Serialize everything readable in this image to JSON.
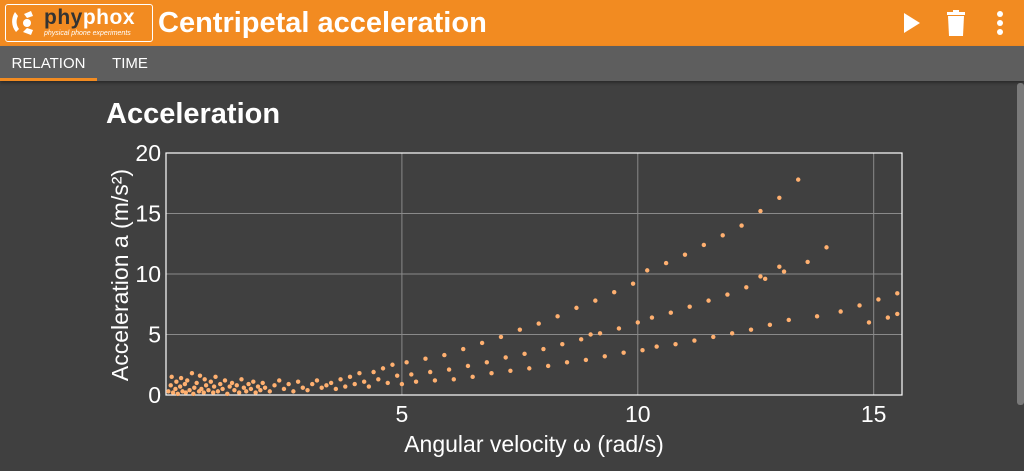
{
  "app": {
    "logo_word_a": "phy",
    "logo_word_b": "phox",
    "logo_subtitle": "physical phone experiments",
    "title": "Centripetal acceleration"
  },
  "toolbar": {
    "play_icon": "play-icon",
    "delete_icon": "trash-icon",
    "menu_icon": "more-vertical-icon"
  },
  "tabs": [
    {
      "label": "RELATION",
      "active": true
    },
    {
      "label": "TIME",
      "active": false
    }
  ],
  "graph": {
    "title": "Acceleration"
  },
  "colors": {
    "accent": "#f28b21",
    "background": "#404040",
    "tabbar": "#5e5e5e",
    "marker": "#ffb070"
  },
  "chart_data": {
    "type": "scatter",
    "title": "Acceleration",
    "xlabel": "Angular velocity ω (rad/s)",
    "ylabel": "Acceleration a (m/s²)",
    "xlim": [
      0,
      15.6
    ],
    "ylim": [
      0,
      20
    ],
    "xticks": [
      5,
      10,
      15
    ],
    "yticks": [
      0,
      5,
      10,
      15,
      20
    ],
    "grid": true,
    "series": [
      {
        "values": [
          [
            0.05,
            0.3
          ],
          [
            0.1,
            0.8
          ],
          [
            0.12,
            1.5
          ],
          [
            0.15,
            0.2
          ],
          [
            0.2,
            0.5
          ],
          [
            0.22,
            1.1
          ],
          [
            0.25,
            0.1
          ],
          [
            0.3,
            0.7
          ],
          [
            0.32,
            1.4
          ],
          [
            0.35,
            0.3
          ],
          [
            0.4,
            0.9
          ],
          [
            0.42,
            0.2
          ],
          [
            0.45,
            1.2
          ],
          [
            0.5,
            0.4
          ],
          [
            0.55,
            1.8
          ],
          [
            0.58,
            0.1
          ],
          [
            0.6,
            0.6
          ],
          [
            0.65,
            1.0
          ],
          [
            0.7,
            0.3
          ],
          [
            0.72,
            1.6
          ],
          [
            0.75,
            0.5
          ],
          [
            0.8,
            0.2
          ],
          [
            0.82,
            1.3
          ],
          [
            0.85,
            0.8
          ],
          [
            0.9,
            0.4
          ],
          [
            0.95,
            1.1
          ],
          [
            1.0,
            0.2
          ],
          [
            1.02,
            0.7
          ],
          [
            1.05,
            1.5
          ],
          [
            1.1,
            0.3
          ],
          [
            1.15,
            0.9
          ],
          [
            1.2,
            0.5
          ],
          [
            1.25,
            1.2
          ],
          [
            1.3,
            0.1
          ],
          [
            1.35,
            0.7
          ],
          [
            1.4,
            1.0
          ],
          [
            1.45,
            0.4
          ],
          [
            1.5,
            0.8
          ],
          [
            1.55,
            0.2
          ],
          [
            1.6,
            1.3
          ],
          [
            1.65,
            0.6
          ],
          [
            1.7,
            0.3
          ],
          [
            1.75,
            0.9
          ],
          [
            1.8,
            0.5
          ],
          [
            1.85,
            1.1
          ],
          [
            1.9,
            0.2
          ],
          [
            1.95,
            0.7
          ],
          [
            2.0,
            0.4
          ],
          [
            2.05,
            1.0
          ],
          [
            2.1,
            0.6
          ],
          [
            2.2,
            0.3
          ],
          [
            2.3,
            0.8
          ],
          [
            2.4,
            1.2
          ],
          [
            2.5,
            0.5
          ],
          [
            2.6,
            0.9
          ],
          [
            2.7,
            0.3
          ],
          [
            2.8,
            1.1
          ],
          [
            2.9,
            0.6
          ],
          [
            3.0,
            0.4
          ],
          [
            3.1,
            0.9
          ],
          [
            3.2,
            1.2
          ],
          [
            3.3,
            0.6
          ],
          [
            3.4,
            0.8
          ],
          [
            3.5,
            1.0
          ],
          [
            3.6,
            0.5
          ],
          [
            3.7,
            1.3
          ],
          [
            3.8,
            0.7
          ],
          [
            3.9,
            1.5
          ],
          [
            4.0,
            0.9
          ],
          [
            4.1,
            1.8
          ],
          [
            4.2,
            1.1
          ],
          [
            4.3,
            0.7
          ],
          [
            4.4,
            1.9
          ],
          [
            4.5,
            1.3
          ],
          [
            4.6,
            2.2
          ],
          [
            4.7,
            1.0
          ],
          [
            4.8,
            2.5
          ],
          [
            4.9,
            1.6
          ],
          [
            5.0,
            0.9
          ],
          [
            5.1,
            2.7
          ],
          [
            5.2,
            1.7
          ],
          [
            5.3,
            1.1
          ],
          [
            5.5,
            3.0
          ],
          [
            5.6,
            1.9
          ],
          [
            5.7,
            1.2
          ],
          [
            5.9,
            3.3
          ],
          [
            6.0,
            2.1
          ],
          [
            6.1,
            1.3
          ],
          [
            6.3,
            3.8
          ],
          [
            6.4,
            2.4
          ],
          [
            6.5,
            1.5
          ],
          [
            6.7,
            4.3
          ],
          [
            6.8,
            2.7
          ],
          [
            6.9,
            1.8
          ],
          [
            7.1,
            4.8
          ],
          [
            7.2,
            3.1
          ],
          [
            7.3,
            2.0
          ],
          [
            7.5,
            5.4
          ],
          [
            7.6,
            3.4
          ],
          [
            7.7,
            2.2
          ],
          [
            7.9,
            5.9
          ],
          [
            8.0,
            3.8
          ],
          [
            8.1,
            2.4
          ],
          [
            8.3,
            6.5
          ],
          [
            8.4,
            4.2
          ],
          [
            8.5,
            2.7
          ],
          [
            8.7,
            7.2
          ],
          [
            8.8,
            4.6
          ],
          [
            8.9,
            2.9
          ],
          [
            9.0,
            5.0
          ],
          [
            9.1,
            7.8
          ],
          [
            9.2,
            5.1
          ],
          [
            9.3,
            3.2
          ],
          [
            9.5,
            8.5
          ],
          [
            9.6,
            5.5
          ],
          [
            9.7,
            3.5
          ],
          [
            9.9,
            9.2
          ],
          [
            10.0,
            6.0
          ],
          [
            10.1,
            3.7
          ],
          [
            10.2,
            10.3
          ],
          [
            10.3,
            6.4
          ],
          [
            10.4,
            4.0
          ],
          [
            10.6,
            10.9
          ],
          [
            10.7,
            6.8
          ],
          [
            10.8,
            4.2
          ],
          [
            11.0,
            11.6
          ],
          [
            11.1,
            7.3
          ],
          [
            11.2,
            4.5
          ],
          [
            11.4,
            12.4
          ],
          [
            11.5,
            7.8
          ],
          [
            11.6,
            4.8
          ],
          [
            11.8,
            13.2
          ],
          [
            11.9,
            8.3
          ],
          [
            12.0,
            5.1
          ],
          [
            12.2,
            14.0
          ],
          [
            12.3,
            8.9
          ],
          [
            12.4,
            5.4
          ],
          [
            12.6,
            15.2
          ],
          [
            12.7,
            9.6
          ],
          [
            12.8,
            5.8
          ],
          [
            13.0,
            16.3
          ],
          [
            13.1,
            10.2
          ],
          [
            13.2,
            6.2
          ],
          [
            13.4,
            17.8
          ],
          [
            13.6,
            11.0
          ],
          [
            13.8,
            6.5
          ],
          [
            14.0,
            12.2
          ],
          [
            14.3,
            6.9
          ],
          [
            14.7,
            7.4
          ],
          [
            15.1,
            7.9
          ],
          [
            15.5,
            8.4
          ],
          [
            13.0,
            10.6
          ],
          [
            12.6,
            9.8
          ],
          [
            14.9,
            6.0
          ],
          [
            15.3,
            6.4
          ],
          [
            15.5,
            6.7
          ]
        ]
      }
    ]
  }
}
